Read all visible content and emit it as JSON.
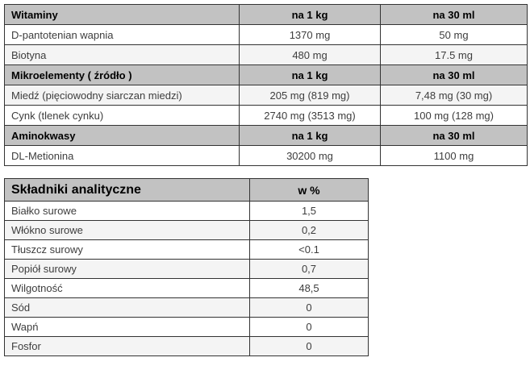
{
  "colors": {
    "header_bg": "#c2c2c2",
    "stripe_bg": "#f4f4f4",
    "border": "#333333",
    "text": "#3d3d3d",
    "header_text": "#000000"
  },
  "tables": [
    {
      "name": "Witaminy / Mikroelementy / Aminokwasy",
      "rows": [
        {
          "type": "header",
          "cells": [
            "Witaminy",
            "na 1 kg",
            "na 30 ml"
          ]
        },
        {
          "type": "data",
          "cells": [
            "D-pantotenian wapnia",
            "1370 mg",
            "50 mg"
          ]
        },
        {
          "type": "data",
          "cells": [
            "Biotyna",
            "480 mg",
            "17.5 mg"
          ]
        },
        {
          "type": "header",
          "cells": [
            "Mikroelementy ( źródło )",
            "na 1 kg",
            "na 30 ml"
          ]
        },
        {
          "type": "data",
          "cells": [
            "Miedź (pięciowodny siarczan miedzi)",
            "205 mg (819 mg)",
            "7,48 mg (30 mg)"
          ]
        },
        {
          "type": "data",
          "cells": [
            "Cynk (tlenek cynku)",
            "2740 mg (3513 mg)",
            "100 mg (128 mg)"
          ]
        },
        {
          "type": "header",
          "cells": [
            "Aminokwasy",
            "na 1 kg",
            "na 30 ml"
          ]
        },
        {
          "type": "data",
          "cells": [
            "DL-Metionina",
            "30200 mg",
            "1100 mg"
          ]
        }
      ]
    },
    {
      "name": "Składniki analityczne",
      "rows": [
        {
          "type": "header",
          "cells": [
            "Składniki analityczne",
            "w %"
          ]
        },
        {
          "type": "data",
          "cells": [
            "Białko surowe",
            "1,5"
          ]
        },
        {
          "type": "data",
          "cells": [
            "Włókno surowe",
            "0,2"
          ]
        },
        {
          "type": "data",
          "cells": [
            "Tłuszcz surowy",
            "<0.1"
          ]
        },
        {
          "type": "data",
          "cells": [
            "Popiół surowy",
            "0,7"
          ]
        },
        {
          "type": "data",
          "cells": [
            "Wilgotność",
            "48,5"
          ]
        },
        {
          "type": "data",
          "cells": [
            "Sód",
            "0"
          ]
        },
        {
          "type": "data",
          "cells": [
            "Wapń",
            "0"
          ]
        },
        {
          "type": "data",
          "cells": [
            "Fosfor",
            "0"
          ]
        }
      ]
    }
  ]
}
